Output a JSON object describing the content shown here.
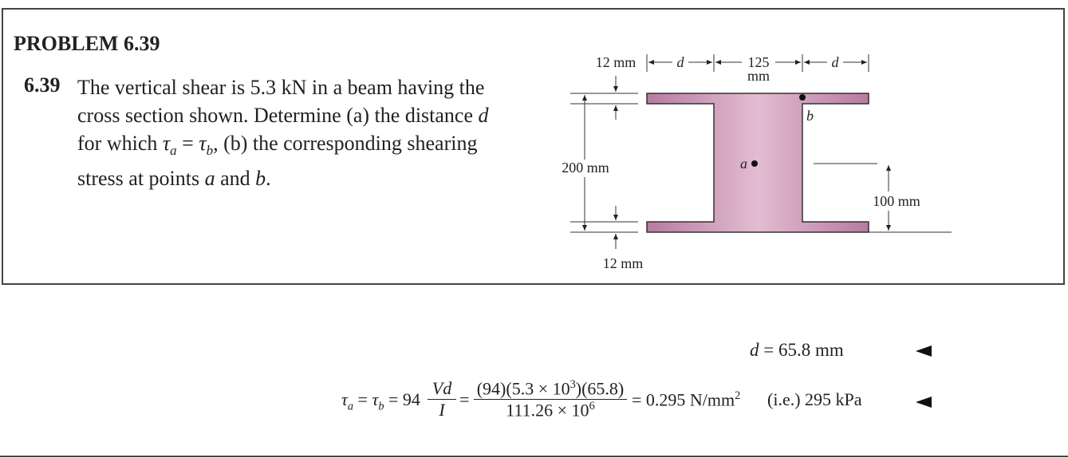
{
  "header": {
    "title": "PROBLEM 6.39"
  },
  "problem": {
    "number": "6.39",
    "parts": [
      "The vertical shear is 5.3 kN in a beam having the",
      "cross section shown. Determine (a) the distance ",
      "d",
      "for which ",
      "τ",
      "a",
      " = ",
      "τ",
      "b",
      ", (b) the corresponding shearing",
      "stress at points ",
      "a",
      " and ",
      "b",
      "."
    ]
  },
  "figure": {
    "top_flange": "12 mm",
    "d_left": "d",
    "web_width": "125",
    "web_unit": "mm",
    "d_right": "d",
    "point_b": "b",
    "height": "200 mm",
    "point_a": "a",
    "a_height": "100 mm",
    "bottom_flange": "12 mm"
  },
  "solution": {
    "answer_d": [
      "d",
      " = 65.8 mm"
    ],
    "equation": {
      "lhs": [
        "τ",
        "a",
        " = ",
        "τ",
        "b",
        " = 94"
      ],
      "frac1_num": "Vd",
      "frac1_den": "I",
      "eq1": "=",
      "frac2_num": [
        "(94)(5.3 × 10",
        "3",
        ")(65.8)"
      ],
      "frac2_den": [
        "111.26 × 10",
        "6"
      ],
      "result": [
        "= 0.295 N/mm",
        "2"
      ],
      "alt": "(i.e.) 295 kPa"
    }
  }
}
